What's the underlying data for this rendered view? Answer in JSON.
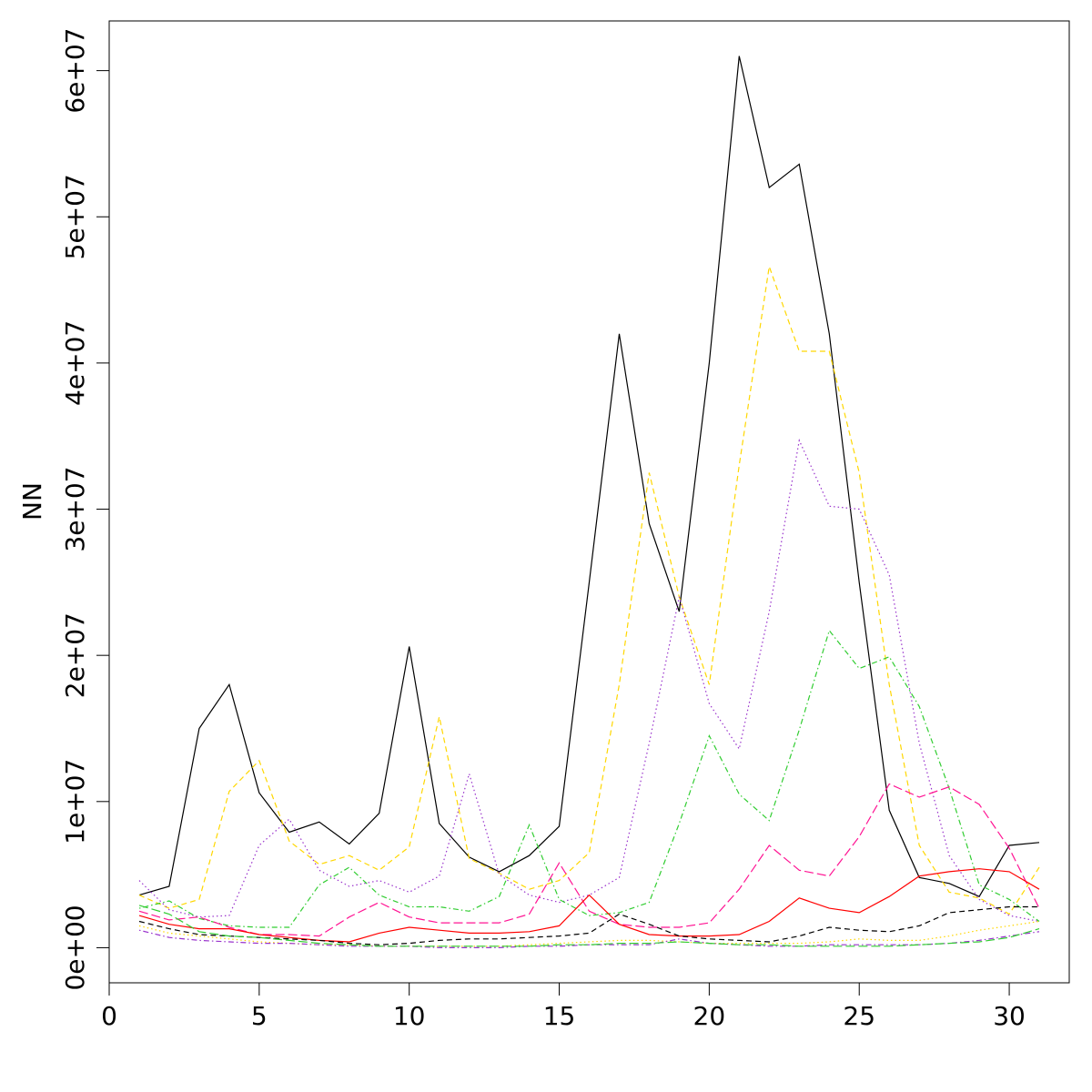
{
  "chart_data": {
    "type": "line",
    "title": "",
    "xlabel": "",
    "ylabel": "NN",
    "xlim": [
      0,
      32
    ],
    "ylim": [
      -2400000,
      63400000
    ],
    "x_ticks": [
      {
        "value": 0,
        "label": "0"
      },
      {
        "value": 5,
        "label": "5"
      },
      {
        "value": 10,
        "label": "10"
      },
      {
        "value": 15,
        "label": "15"
      },
      {
        "value": 20,
        "label": "20"
      },
      {
        "value": 25,
        "label": "25"
      },
      {
        "value": 30,
        "label": "30"
      }
    ],
    "y_ticks": [
      {
        "value": 0,
        "label": "0e+00"
      },
      {
        "value": 10000000,
        "label": "1e+07"
      },
      {
        "value": 20000000,
        "label": "2e+07"
      },
      {
        "value": 30000000,
        "label": "3e+07"
      },
      {
        "value": 40000000,
        "label": "4e+07"
      },
      {
        "value": 50000000,
        "label": "5e+07"
      },
      {
        "value": 60000000,
        "label": "6e+07"
      }
    ],
    "grid": false,
    "legend": "none",
    "x": [
      1,
      2,
      3,
      4,
      5,
      6,
      7,
      8,
      9,
      10,
      11,
      12,
      13,
      14,
      15,
      16,
      17,
      18,
      19,
      20,
      21,
      22,
      23,
      24,
      25,
      26,
      27,
      28,
      29,
      30,
      31
    ],
    "series": [
      {
        "color": "#000000",
        "dash": "solid",
        "values": [
          3600000,
          4200000,
          15000000,
          18000000,
          10600000,
          7900000,
          8600000,
          7100000,
          9200000,
          20600000,
          8500000,
          6200000,
          5200000,
          6300000,
          8300000,
          25000000,
          42000000,
          29000000,
          23000000,
          40000000,
          61000000,
          52000000,
          53600000,
          42000000,
          25000000,
          9400000,
          4800000,
          4400000,
          3500000,
          7000000,
          7200000
        ]
      },
      {
        "color": "#ffd700",
        "dash": "dashed",
        "values": [
          3600000,
          2700000,
          3300000,
          10700000,
          12800000,
          7300000,
          5700000,
          6300000,
          5300000,
          6900000,
          15800000,
          6100000,
          5100000,
          4000000,
          4600000,
          6500000,
          18000000,
          32500000,
          24000000,
          18000000,
          33000000,
          46600000,
          40800000,
          40800000,
          32500000,
          18000000,
          7000000,
          3800000,
          3400000,
          2300000,
          5500000
        ]
      },
      {
        "color": "#9932cc",
        "dash": "dotted",
        "values": [
          4600000,
          2600000,
          2100000,
          2200000,
          7000000,
          8800000,
          5300000,
          4200000,
          4600000,
          3800000,
          4900000,
          11900000,
          5000000,
          3600000,
          3100000,
          3600000,
          4800000,
          14000000,
          24000000,
          16700000,
          13600000,
          23000000,
          34700000,
          30200000,
          30000000,
          25500000,
          14000000,
          6300000,
          3300000,
          2200000,
          1800000
        ]
      },
      {
        "color": "#32cd32",
        "dash": "dashdot",
        "values": [
          2700000,
          3200000,
          2000000,
          1500000,
          1400000,
          1400000,
          4300000,
          5500000,
          3600000,
          2800000,
          2800000,
          2500000,
          3500000,
          8400000,
          3300000,
          2200000,
          2400000,
          3100000,
          8500000,
          14500000,
          10500000,
          8700000,
          14900000,
          21700000,
          19100000,
          19900000,
          16500000,
          10900000,
          4300000,
          3300000,
          1800000
        ]
      },
      {
        "color": "#ff1493",
        "dash": "longdash",
        "values": [
          2500000,
          1900000,
          2100000,
          1400000,
          900000,
          900000,
          800000,
          2100000,
          3100000,
          2100000,
          1700000,
          1700000,
          1700000,
          2300000,
          5800000,
          2500000,
          1600000,
          1400000,
          1400000,
          1700000,
          4000000,
          7000000,
          5300000,
          4900000,
          7600000,
          11200000,
          10300000,
          11000000,
          9800000,
          6800000,
          2700000
        ]
      },
      {
        "color": "#ff0000",
        "dash": "solid",
        "values": [
          2200000,
          1600000,
          1300000,
          1300000,
          900000,
          700000,
          500000,
          400000,
          1000000,
          1400000,
          1200000,
          1000000,
          1000000,
          1100000,
          1500000,
          3600000,
          1600000,
          900000,
          800000,
          800000,
          900000,
          1800000,
          3400000,
          2700000,
          2400000,
          3500000,
          4900000,
          5200000,
          5400000,
          5200000,
          4000000
        ]
      },
      {
        "color": "#000000",
        "dash": "dashed",
        "values": [
          1800000,
          1300000,
          900000,
          800000,
          700000,
          600000,
          500000,
          300000,
          200000,
          300000,
          500000,
          600000,
          600000,
          700000,
          800000,
          1000000,
          2300000,
          1600000,
          800000,
          600000,
          500000,
          400000,
          800000,
          1400000,
          1200000,
          1100000,
          1500000,
          2400000,
          2600000,
          2800000,
          2800000
        ]
      },
      {
        "color": "#ffd700",
        "dash": "dotted",
        "values": [
          1500000,
          1000000,
          800000,
          600000,
          400000,
          300000,
          200000,
          200000,
          100000,
          100000,
          100000,
          100000,
          100000,
          200000,
          300000,
          400000,
          500000,
          500000,
          400000,
          300000,
          300000,
          300000,
          300000,
          400000,
          600000,
          500000,
          500000,
          800000,
          1200000,
          1500000,
          1800000
        ]
      },
      {
        "color": "#9932cc",
        "dash": "dashdot",
        "values": [
          1200000,
          700000,
          500000,
          400000,
          300000,
          300000,
          200000,
          100000,
          100000,
          100000,
          0,
          0,
          0,
          100000,
          100000,
          200000,
          200000,
          200000,
          600000,
          300000,
          200000,
          100000,
          100000,
          200000,
          200000,
          200000,
          200000,
          300000,
          500000,
          800000,
          1100000
        ]
      },
      {
        "color": "#32cd32",
        "dash": "longdash",
        "values": [
          2900000,
          2300000,
          1100000,
          800000,
          700000,
          500000,
          300000,
          200000,
          100000,
          100000,
          100000,
          100000,
          100000,
          100000,
          200000,
          200000,
          300000,
          300000,
          400000,
          300000,
          200000,
          200000,
          100000,
          100000,
          100000,
          100000,
          200000,
          300000,
          400000,
          700000,
          1300000
        ]
      }
    ]
  }
}
